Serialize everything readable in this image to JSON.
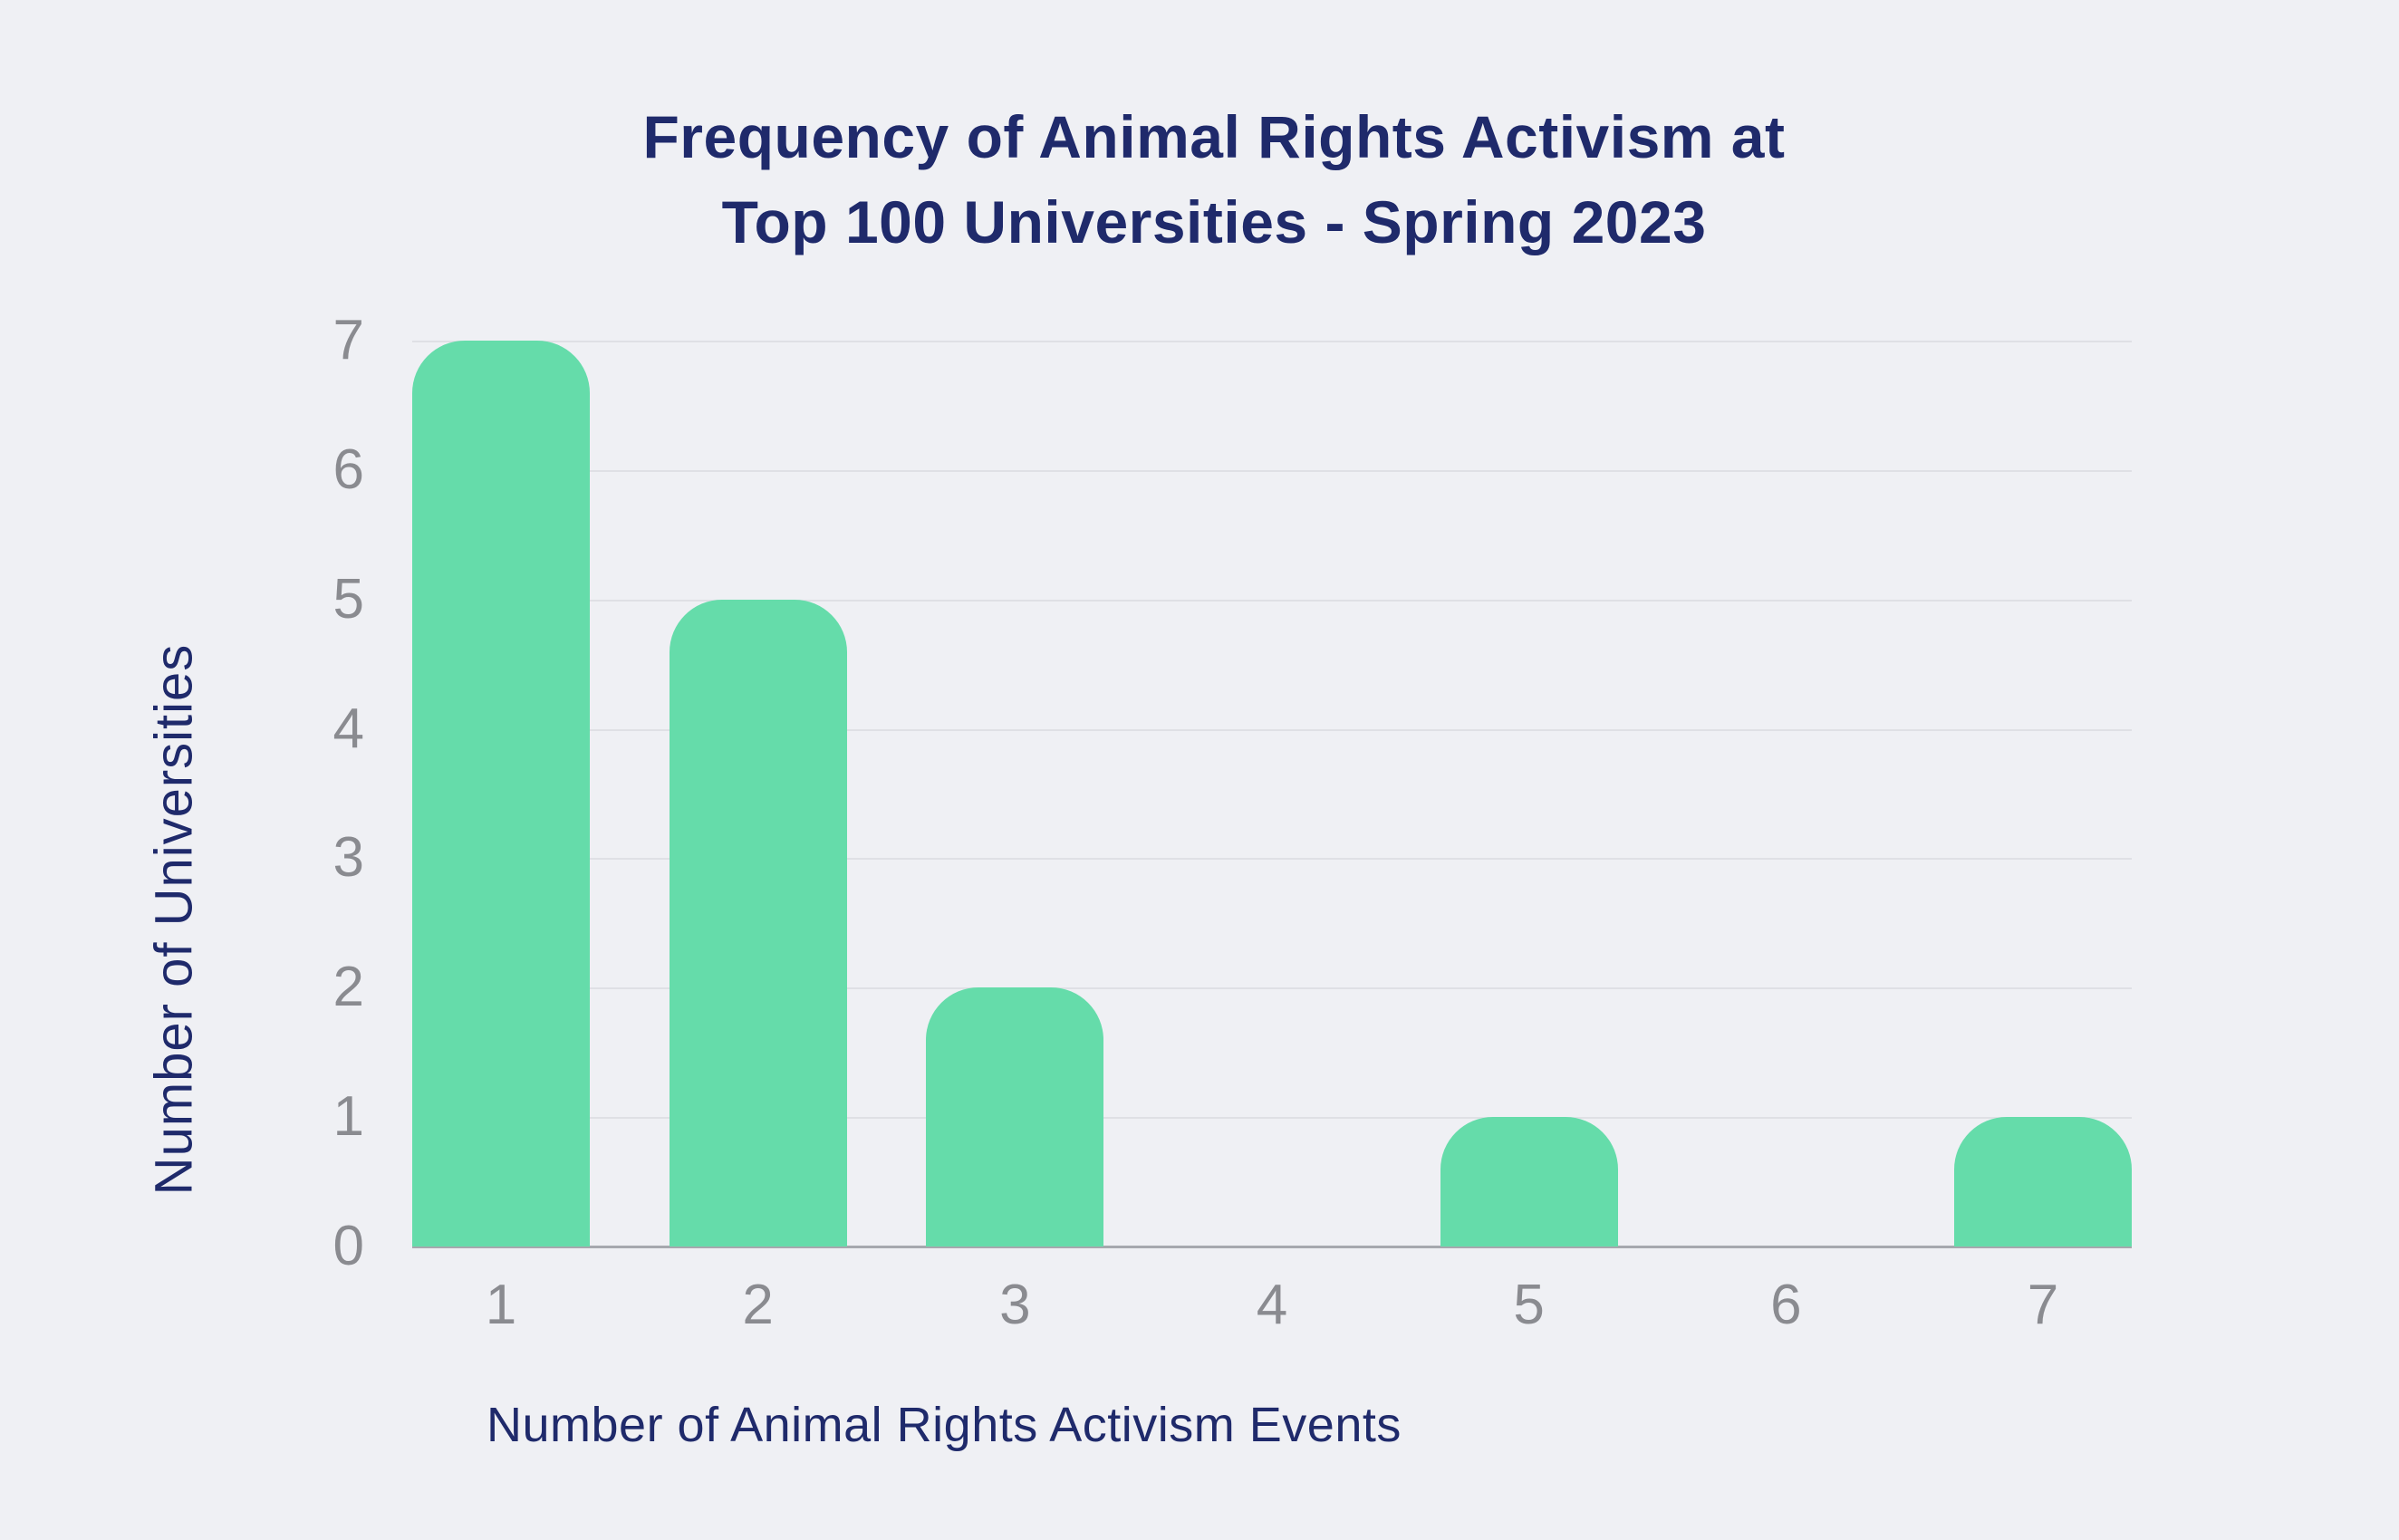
{
  "title": {
    "line1": "Frequency of Animal Rights Activism at",
    "line2": "Top 100 Universities - Spring 2023"
  },
  "chart_data": {
    "type": "bar",
    "title": "Frequency of Animal Rights Activism at Top 100 Universities - Spring 2023",
    "categories": [
      "1",
      "2",
      "3",
      "4",
      "5",
      "6",
      "7"
    ],
    "values": [
      7,
      5,
      2,
      0,
      1,
      0,
      1
    ],
    "xlabel": "Number of Animal Rights Activism Events",
    "ylabel": "Number of Universities",
    "y_ticks": [
      0,
      1,
      2,
      3,
      4,
      5,
      6,
      7
    ],
    "ylim": [
      0,
      7
    ],
    "grid": true,
    "legend": false,
    "colors": {
      "bar": "#65dcaa",
      "background": "#eff0f4",
      "heading_text": "#1f2a6b",
      "tick_text": "#8a8b90",
      "gridline": "#dfe0e5",
      "axis_line": "#a6a8ae"
    }
  }
}
